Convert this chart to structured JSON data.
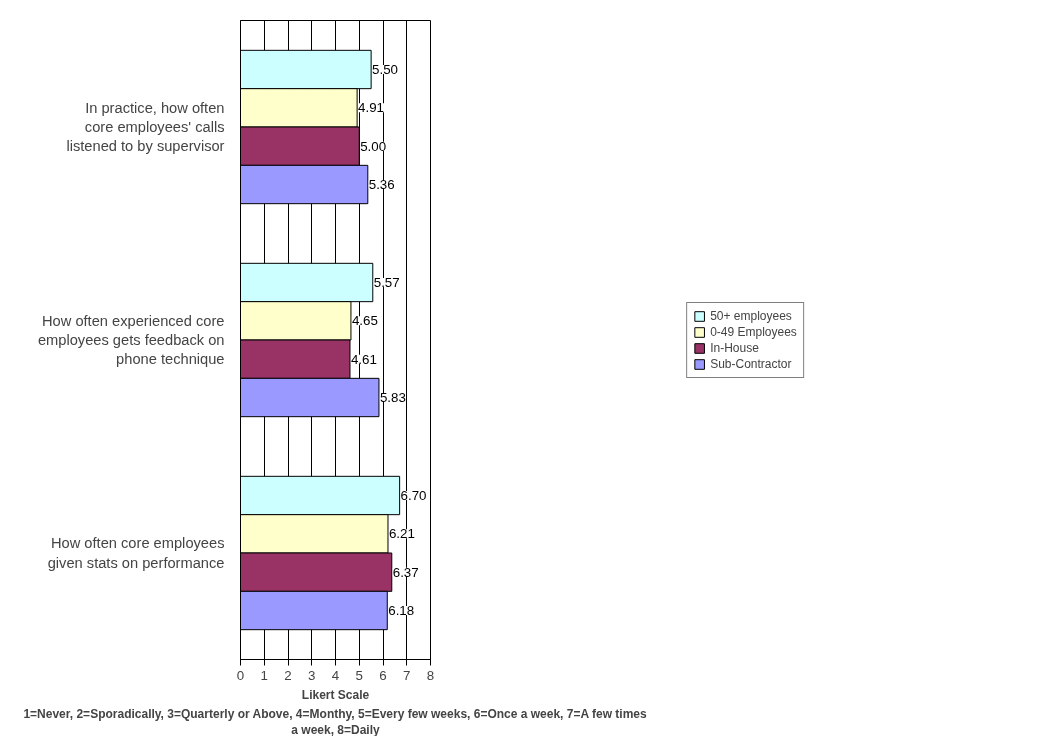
{
  "chart_data": {
    "type": "bar",
    "orientation": "horizontal",
    "categories": [
      "In practice, how often core employees' calls listened to by supervisor",
      "How often experienced core employees gets feedback on phone technique",
      "How often core employees given stats on performance"
    ],
    "series": [
      {
        "name": "50+ employees",
        "color": "#ccffff",
        "values": [
          5.5,
          5.57,
          6.7
        ],
        "value_labels": [
          "5.50",
          "5.57",
          "6.70"
        ]
      },
      {
        "name": "0-49 Employees",
        "color": "#ffffcc",
        "values": [
          4.91,
          4.65,
          6.21
        ],
        "value_labels": [
          "4.91",
          "4.65",
          "6.21"
        ]
      },
      {
        "name": "In-House",
        "color": "#993366",
        "values": [
          5.0,
          4.61,
          6.37
        ],
        "value_labels": [
          "5.00",
          "4.61",
          "6.37"
        ]
      },
      {
        "name": "Sub-Contractor",
        "color": "#9999ff",
        "values": [
          5.36,
          5.83,
          6.18
        ],
        "value_labels": [
          "5.36",
          "5.83",
          "6.18"
        ]
      }
    ],
    "xlabel": "Likert Scale",
    "annotations": [
      "1=Never, 2=Sporadically, 3=Quarterly or Above, 4=Monthy, 5=Every few weeks, 6=Once a week, 7=A few times a week, 8=Daily"
    ],
    "xlim": [
      0,
      8
    ],
    "xticks": [
      0,
      1,
      2,
      3,
      4,
      5,
      6,
      7,
      8
    ],
    "grid": "x",
    "legend": "right"
  }
}
